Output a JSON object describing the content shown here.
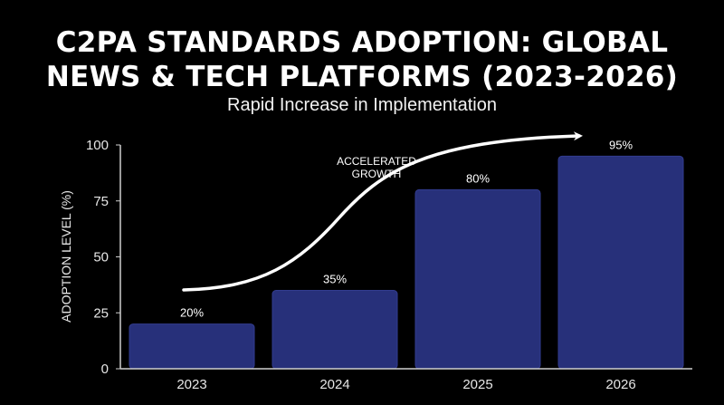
{
  "colors": {
    "background": "#000000",
    "bar": "#27307a",
    "bar_edge": "#323c8f",
    "text": "#ffffff",
    "axis": "#cfcfcf"
  },
  "chart_data": {
    "type": "bar",
    "title_lines": [
      "C2PA STANDARDS ADOPTION: GLOBAL",
      "NEWS & TECH PLATFORMS (2023-2026)"
    ],
    "subtitle": "Rapid Increase in Implementation",
    "xlabel": "",
    "ylabel": "ADOPTION LEVEL (%)",
    "categories": [
      "2023",
      "2024",
      "2025",
      "2026"
    ],
    "values": [
      20,
      35,
      80,
      95
    ],
    "data_labels": [
      "20%",
      "35%",
      "80%",
      "95%"
    ],
    "ylim": [
      0,
      100
    ],
    "yticks": [
      0,
      25,
      50,
      75,
      100
    ],
    "grid": false,
    "annotation": {
      "lines": [
        "ACCELERATED",
        "GROWTH"
      ],
      "arrow": "curved upward trend arrow"
    }
  }
}
